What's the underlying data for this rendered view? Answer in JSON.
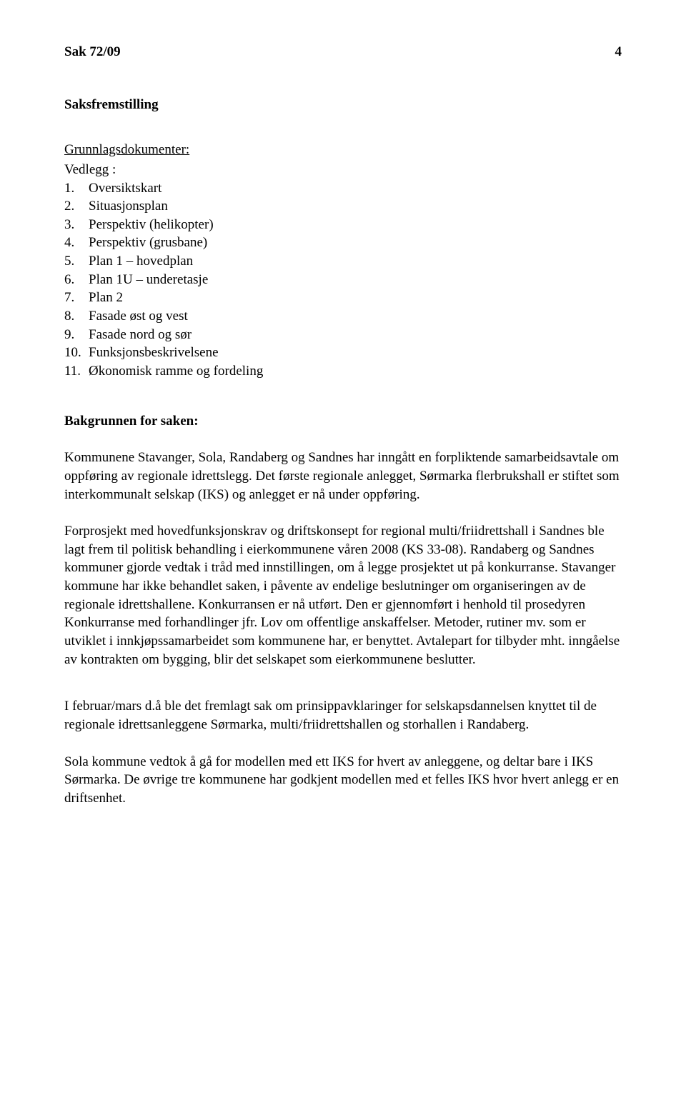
{
  "header": {
    "case_ref": "Sak  72/09",
    "page_number": "4"
  },
  "section_heading": "Saksfremstilling",
  "attachments": {
    "title": "Grunnlagsdokumenter:",
    "subtitle": "Vedlegg :",
    "items": [
      {
        "num": "1.",
        "text": "Oversiktskart"
      },
      {
        "num": "2.",
        "text": "Situasjonsplan"
      },
      {
        "num": "3.",
        "text": "Perspektiv (helikopter)"
      },
      {
        "num": "4.",
        "text": "Perspektiv (grusbane)"
      },
      {
        "num": "5.",
        "text": "Plan 1 – hovedplan"
      },
      {
        "num": "6.",
        "text": "Plan 1U – underetasje"
      },
      {
        "num": "7.",
        "text": "Plan 2"
      },
      {
        "num": "8.",
        "text": "Fasade øst og vest"
      },
      {
        "num": "9.",
        "text": "Fasade nord og sør"
      },
      {
        "num": "10.",
        "text": "Funksjonsbeskrivelsene"
      },
      {
        "num": "11.",
        "text": "Økonomisk ramme og fordeling"
      }
    ]
  },
  "background": {
    "heading": "Bakgrunnen for saken:",
    "p1": "Kommunene Stavanger, Sola, Randaberg og Sandnes har inngått en forpliktende samarbeidsavtale om oppføring av regionale idrettslegg. Det første regionale anlegget, Sørmarka flerbrukshall er stiftet som interkommunalt selskap (IKS) og anlegget er nå under oppføring.",
    "p2": "Forprosjekt med hovedfunksjonskrav og driftskonsept for regional multi/friidrettshall i Sandnes ble lagt frem til politisk behandling i eierkommunene våren 2008 (KS 33-08). Randaberg og Sandnes kommuner gjorde vedtak i tråd med innstillingen, om å legge prosjektet ut på konkurranse. Stavanger kommune har ikke behandlet saken, i påvente av endelige beslutninger om organiseringen av de regionale idrettshallene. Konkurransen er nå utført. Den er gjennomført i henhold til prosedyren Konkurranse med forhandlinger jfr. Lov om offentlige anskaffelser. Metoder, rutiner mv. som er utviklet i innkjøpssamarbeidet som kommunene har, er benyttet. Avtalepart for tilbyder mht. inngåelse av kontrakten om bygging, blir det selskapet som eierkommunene beslutter.",
    "p3": "I februar/mars d.å  ble det fremlagt sak om prinsippavklaringer for selskapsdannelsen knyttet til de regionale idrettsanleggene Sørmarka, multi/friidrettshallen og storhallen i Randaberg.",
    "p4": "Sola kommune vedtok å gå for modellen med ett IKS for hvert av anleggene, og deltar bare i IKS Sørmarka. De øvrige tre kommunene har godkjent modellen med et felles IKS hvor hvert anlegg er en driftsenhet."
  }
}
